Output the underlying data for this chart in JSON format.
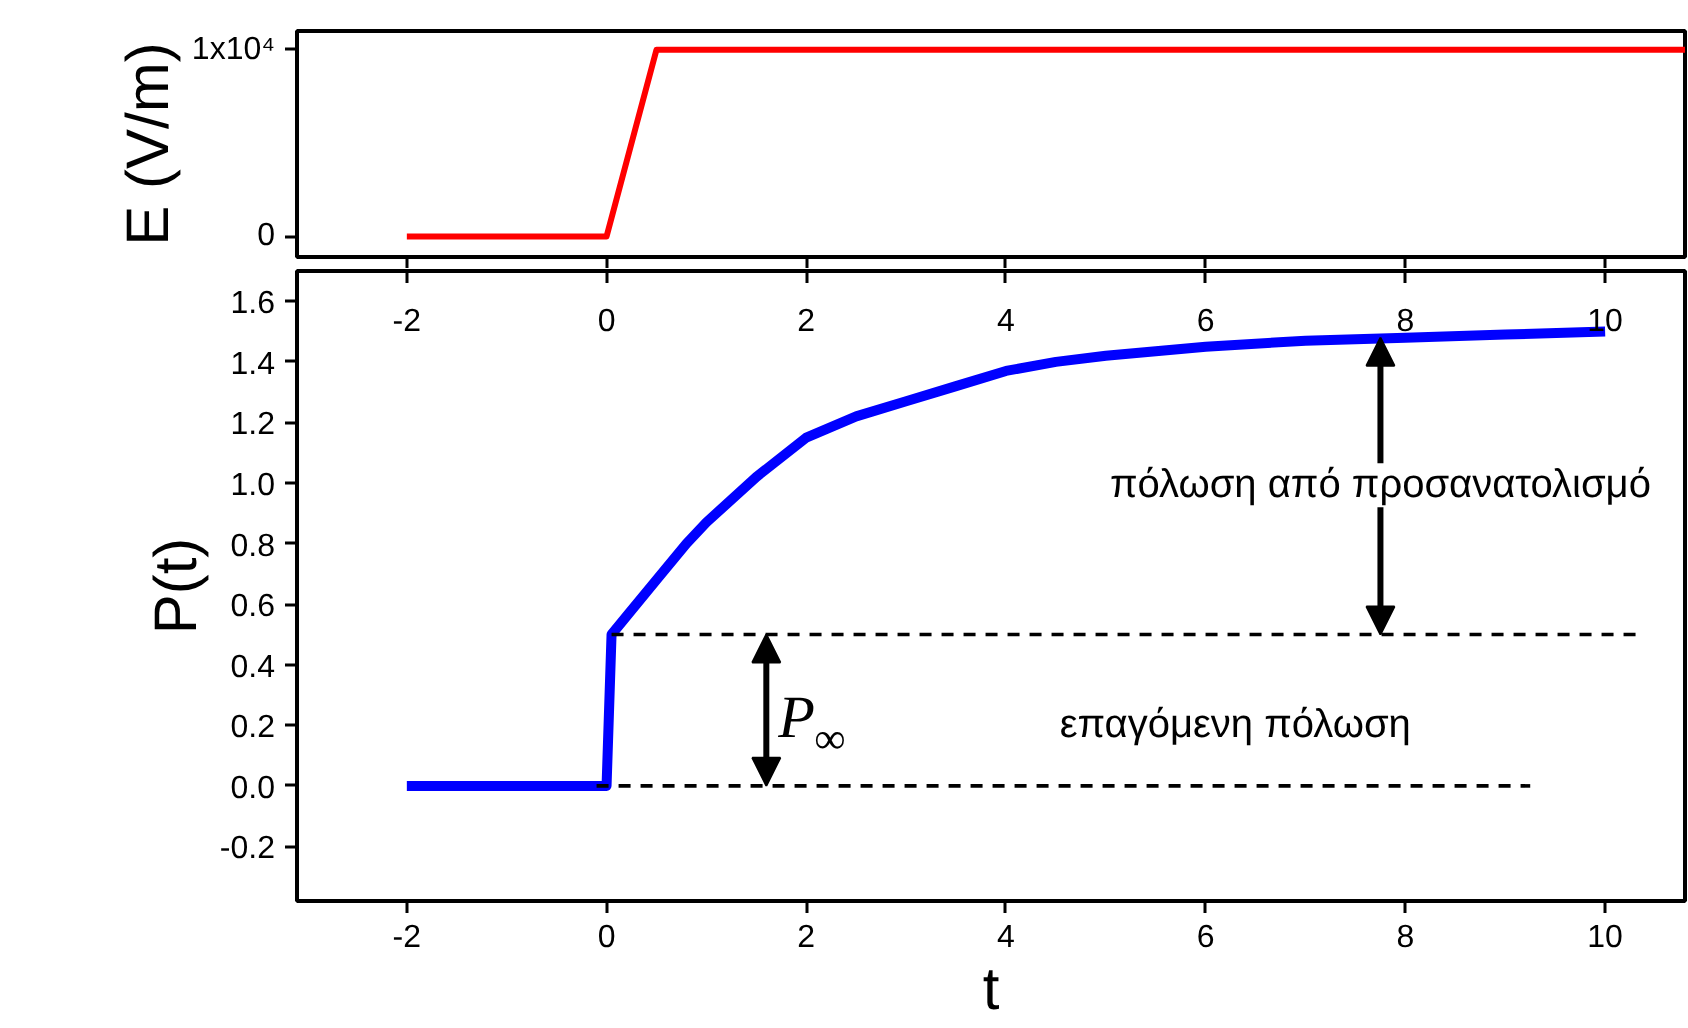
{
  "chart_data": [
    {
      "type": "line",
      "ylabel": "E (V/m)",
      "xlim": [
        -3.1,
        10.8
      ],
      "xticks": [
        -2,
        0,
        2,
        4,
        6,
        8,
        10
      ],
      "ylim": [
        -1100,
        11000
      ],
      "yticks": [
        0,
        {
          "value": 10000,
          "label": "1x10⁴"
        }
      ],
      "tick_labels": "y",
      "grid": false,
      "series": [
        {
          "color": "#ff0000",
          "x": [
            -2,
            0,
            0.5,
            10.8
          ],
          "values": [
            0,
            0,
            10000,
            10000
          ]
        }
      ]
    },
    {
      "type": "line",
      "ylabel": "P(t)",
      "xlabel": "t",
      "xlim": [
        -3.1,
        10.8
      ],
      "xticks": [
        -2,
        0,
        2,
        4,
        6,
        8,
        10
      ],
      "x2lim": [
        -3.1,
        10.8
      ],
      "x2ticks": [
        -2,
        0,
        2,
        4,
        6,
        8,
        10
      ],
      "ylim": [
        -0.38,
        1.7
      ],
      "yticks": [
        -0.2,
        {
          "value": 0,
          "label": "0.0"
        },
        0.2,
        0.4,
        0.6,
        0.8,
        {
          "value": 1,
          "label": "1.0"
        },
        1.2,
        1.4,
        1.6
      ],
      "grid": false,
      "series": [
        {
          "color": "#0000ff",
          "x": [
            -2,
            0,
            0.05,
            0.2,
            0.5,
            0.8,
            1,
            1.5,
            2,
            2.5,
            3,
            3.5,
            4,
            4.5,
            5,
            6,
            7,
            8,
            9,
            10
          ],
          "values": [
            0,
            0,
            0.5,
            0.56,
            0.68,
            0.8,
            0.87,
            1.02,
            1.15,
            1.22,
            1.27,
            1.32,
            1.37,
            1.4,
            1.42,
            1.45,
            1.47,
            1.48,
            1.49,
            1.5
          ]
        },
        {
          "color": "#000000",
          "line_style": "dashed",
          "x": [
            0.05,
            10.35
          ],
          "values": [
            0.5,
            0.5
          ]
        },
        {
          "color": "#000000",
          "line_style": "dashed",
          "x": [
            -0.1,
            9.25
          ],
          "values": [
            0,
            0
          ]
        }
      ],
      "annotations": [
        {
          "text": "P$_{∞}$",
          "x": 1.6,
          "y": 0.5
        },
        {
          "text": "πόλωση από προσανατολισμό",
          "x": 7.75,
          "y": 1.48
        },
        "επαγόμενη πόλωση"
      ]
    }
  ]
}
